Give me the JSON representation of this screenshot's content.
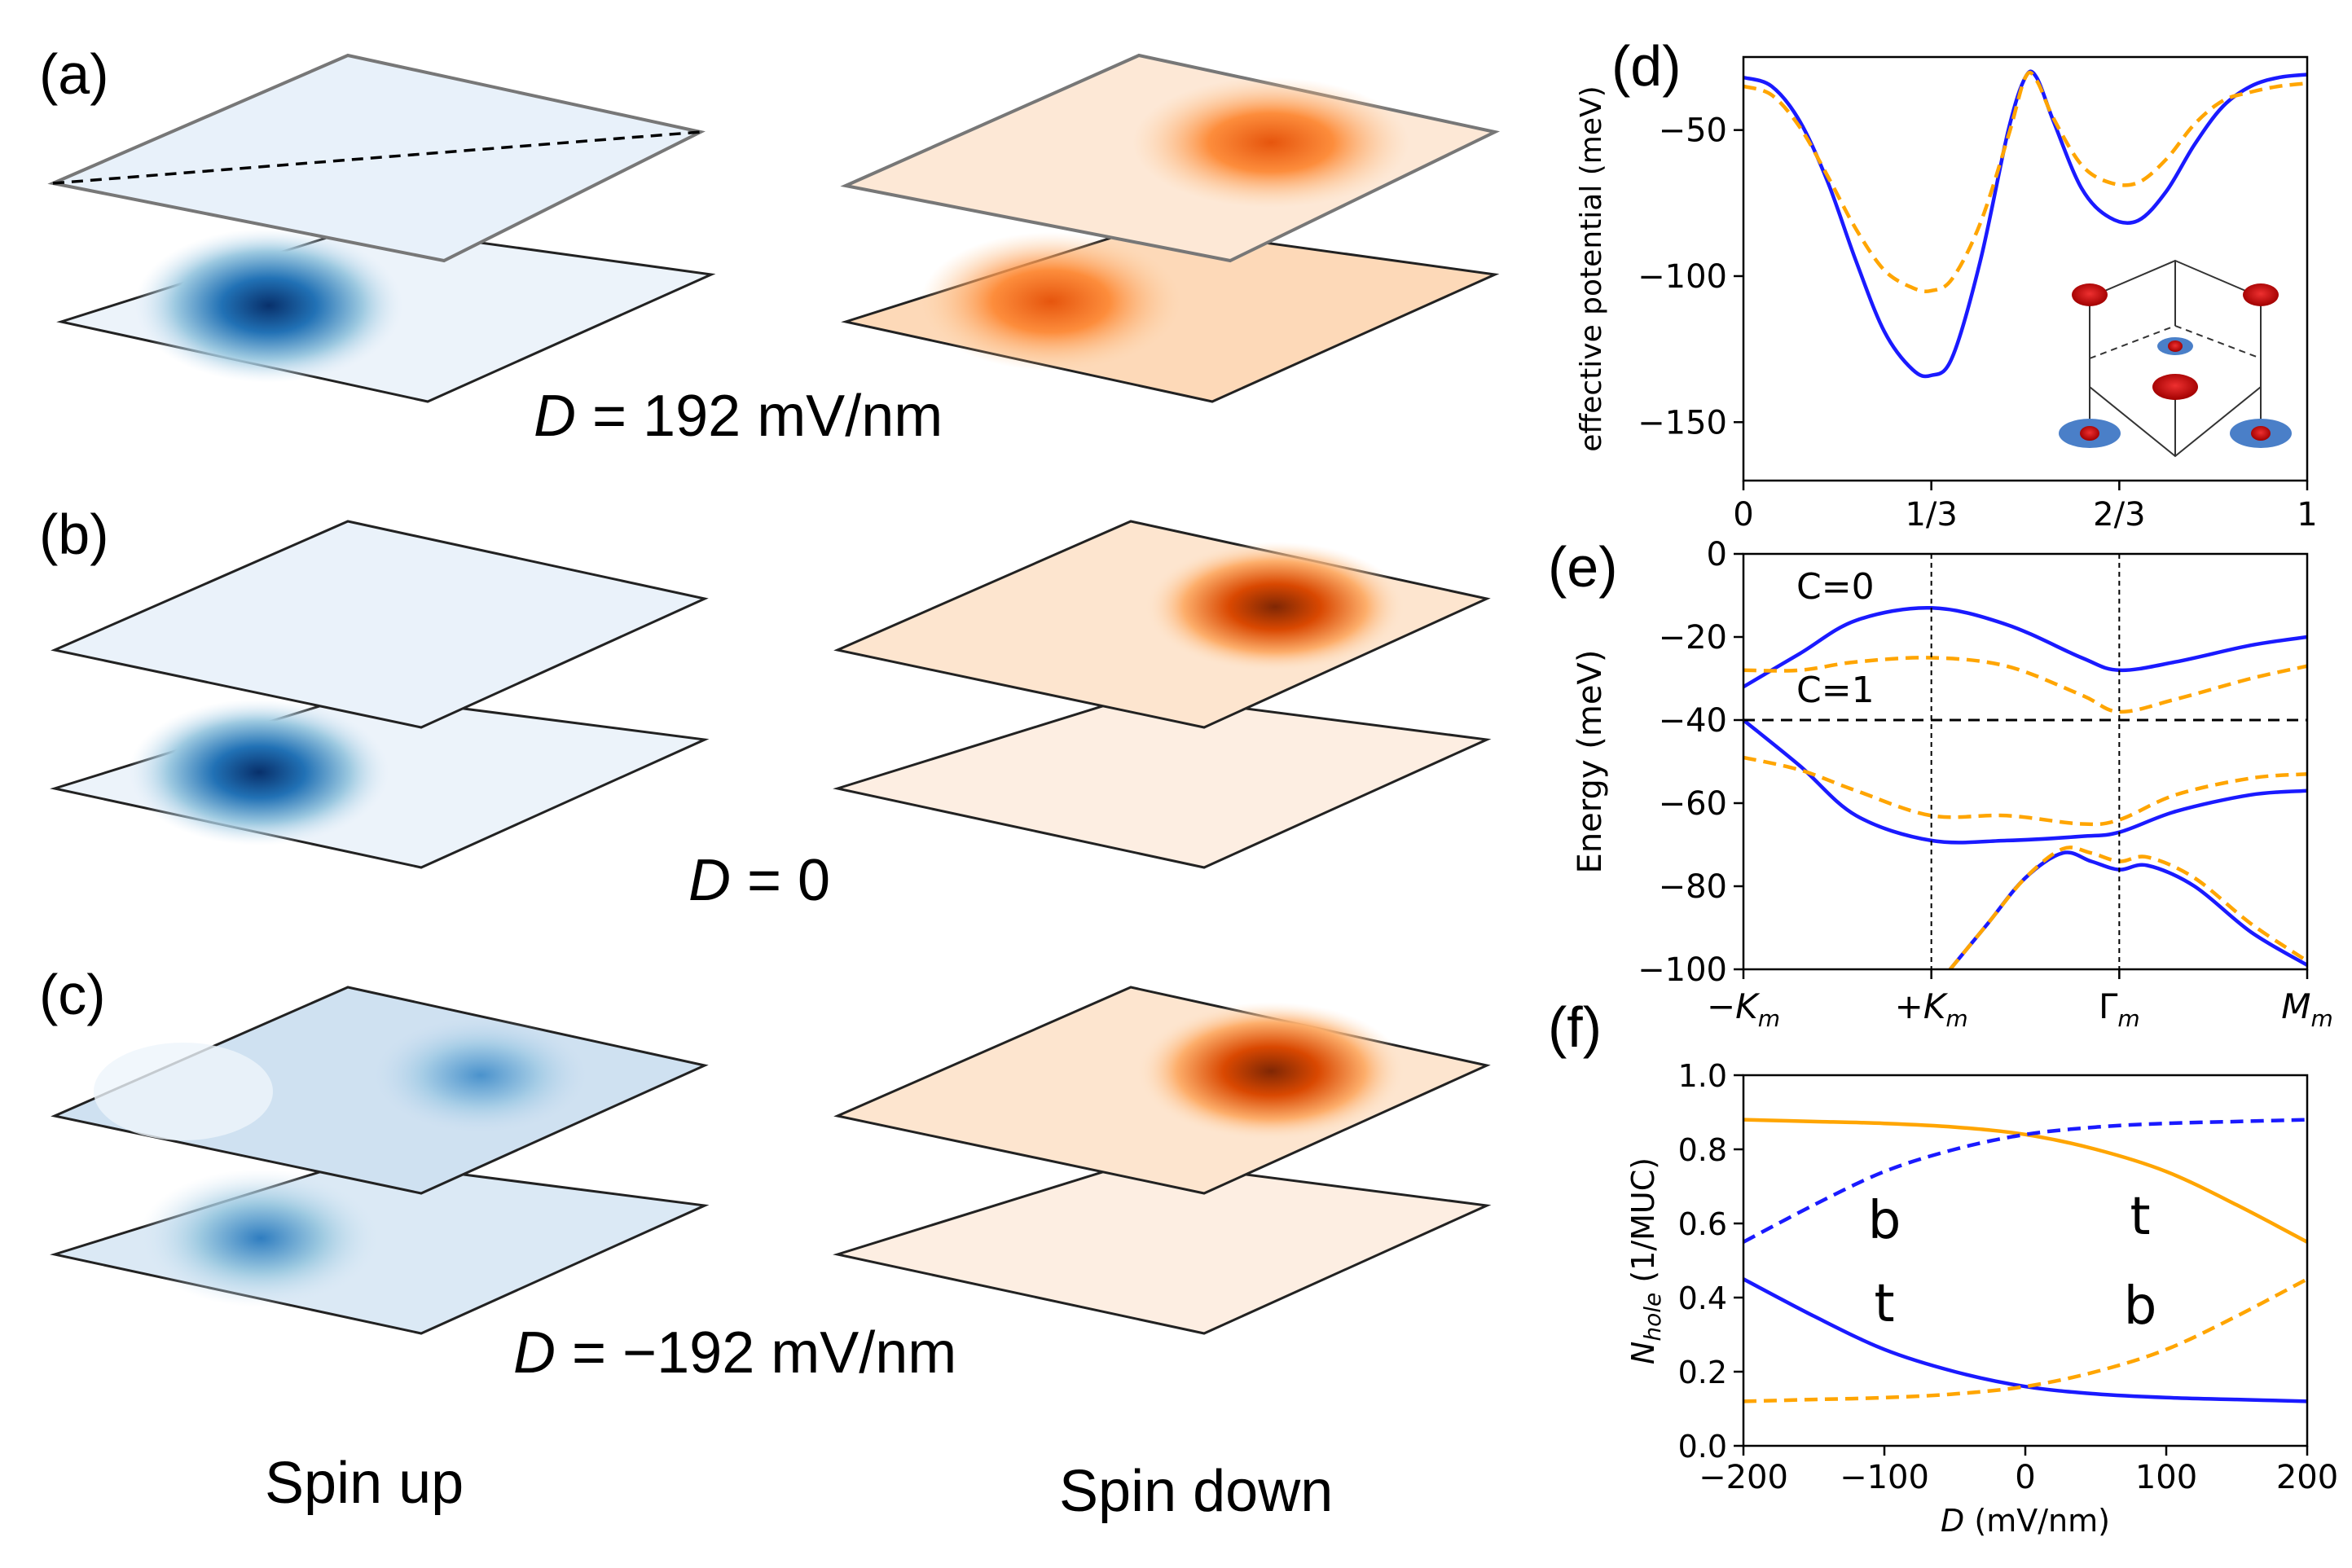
{
  "panels": {
    "a": {
      "label": "(a)",
      "caption_var": "D",
      "caption_rest": " = 192 mV/nm"
    },
    "b": {
      "label": "(b)",
      "caption_var": "D",
      "caption_rest": " = 0"
    },
    "c": {
      "label": "(c)",
      "caption_var": "D",
      "caption_rest": " = −192 mV/nm"
    },
    "d": {
      "label": "(d)"
    },
    "e": {
      "label": "(e)"
    },
    "f": {
      "label": "(f)"
    }
  },
  "spin_labels": {
    "up": "Spin up",
    "down": "Spin down"
  },
  "colors": {
    "spin_up": "#2166ac",
    "spin_down": "#d95f0e",
    "blue_line": "#1a1aff",
    "orange_line": "#ffa500"
  },
  "chart_data": [
    {
      "id": "d",
      "type": "line",
      "ylabel": "effective potential (meV)",
      "xlabel": "",
      "xlim": [
        0,
        1
      ],
      "ylim": [
        -170,
        -25
      ],
      "xticks": [
        0,
        0.3333,
        0.6667,
        1
      ],
      "xtick_labels": [
        "0",
        "1/3",
        "2/3",
        "1"
      ],
      "yticks": [
        -50,
        -100,
        -150
      ],
      "ytick_labels": [
        "−50",
        "−100",
        "−150"
      ],
      "series": [
        {
          "name": "solid",
          "style": "solid",
          "color": "#1a1aff",
          "x": [
            0,
            0.05,
            0.1,
            0.15,
            0.2,
            0.25,
            0.3,
            0.333,
            0.37,
            0.42,
            0.47,
            0.5,
            0.52,
            0.55,
            0.6,
            0.65,
            0.7,
            0.75,
            0.8,
            0.85,
            0.9,
            0.95,
            1
          ],
          "y": [
            -32,
            -35,
            -47,
            -68,
            -95,
            -119,
            -132,
            -134,
            -128,
            -95,
            -50,
            -32,
            -32,
            -47,
            -70,
            -80,
            -81,
            -71,
            -55,
            -42,
            -35,
            -32,
            -31
          ]
        },
        {
          "name": "dashed",
          "style": "dashed",
          "color": "#ffa500",
          "x": [
            0,
            0.05,
            0.1,
            0.15,
            0.2,
            0.25,
            0.3,
            0.333,
            0.37,
            0.42,
            0.47,
            0.5,
            0.52,
            0.55,
            0.6,
            0.65,
            0.7,
            0.75,
            0.8,
            0.85,
            0.9,
            0.95,
            1
          ],
          "y": [
            -35,
            -38,
            -49,
            -66,
            -84,
            -98,
            -104,
            -105,
            -101,
            -82,
            -52,
            -32,
            -33,
            -46,
            -62,
            -68,
            -68,
            -60,
            -48,
            -40,
            -37,
            -35,
            -34
          ]
        }
      ]
    },
    {
      "id": "e",
      "type": "line",
      "ylabel": "Energy (meV)",
      "xlim": [
        0,
        3
      ],
      "ylim": [
        -100,
        0
      ],
      "xtick_labels": [
        "−Km",
        "+Km",
        "Γm",
        "Mm"
      ],
      "ytick_labels": [
        "0",
        "−20",
        "−40",
        "−60",
        "−80",
        "−100"
      ],
      "yticks": [
        0,
        -20,
        -40,
        -60,
        -80,
        -100
      ],
      "annotations": [
        "C=0",
        "C=1"
      ],
      "fermi_level": -40,
      "series": [
        {
          "name": "blue band 1",
          "style": "solid",
          "color": "#1a1aff",
          "x": [
            0,
            0.3,
            0.6,
            1.0,
            1.4,
            1.8,
            2.0,
            2.3,
            2.7,
            3.0
          ],
          "y": [
            -32,
            -24,
            -16,
            -13,
            -17,
            -25,
            -28,
            -26,
            -22,
            -20
          ]
        },
        {
          "name": "blue band 2",
          "style": "solid",
          "color": "#1a1aff",
          "x": [
            0,
            0.3,
            0.6,
            1.0,
            1.4,
            1.8,
            2.0,
            2.3,
            2.7,
            3.0
          ],
          "y": [
            -40,
            -51,
            -63,
            -69,
            -69,
            -68,
            -67,
            -62,
            -58,
            -57
          ]
        },
        {
          "name": "blue band 3",
          "style": "solid",
          "color": "#1a1aff",
          "x": [
            1.1,
            1.3,
            1.5,
            1.7,
            1.85,
            2.0,
            2.15,
            2.4,
            2.7,
            3.0
          ],
          "y": [
            -100,
            -89,
            -78,
            -72,
            -74,
            -76,
            -75,
            -80,
            -91,
            -99
          ]
        },
        {
          "name": "orange band 1",
          "style": "dashed",
          "color": "#ffa500",
          "x": [
            0,
            0.3,
            0.6,
            1.0,
            1.4,
            1.8,
            2.0,
            2.3,
            2.7,
            3.0
          ],
          "y": [
            -28,
            -28,
            -26,
            -25,
            -27,
            -34,
            -38,
            -35,
            -30,
            -27
          ]
        },
        {
          "name": "orange band 2",
          "style": "dashed",
          "color": "#ffa500",
          "x": [
            0,
            0.3,
            0.6,
            1.0,
            1.4,
            1.8,
            2.0,
            2.3,
            2.7,
            3.0
          ],
          "y": [
            -49,
            -52,
            -57,
            -63,
            -63,
            -65,
            -64,
            -58,
            -54,
            -53
          ]
        },
        {
          "name": "orange band 3",
          "style": "dashed",
          "color": "#ffa500",
          "x": [
            1.1,
            1.3,
            1.5,
            1.7,
            1.85,
            2.0,
            2.15,
            2.4,
            2.7,
            3.0
          ],
          "y": [
            -100,
            -89,
            -78,
            -71,
            -72,
            -74,
            -73,
            -78,
            -89,
            -98
          ]
        }
      ]
    },
    {
      "id": "f",
      "type": "line",
      "ylabel": "Nhole (1/MUC)",
      "xlabel": "D (mV/nm)",
      "xlim": [
        -200,
        200
      ],
      "ylim": [
        0,
        1
      ],
      "xticks": [
        -200,
        -100,
        0,
        100,
        200
      ],
      "xtick_labels": [
        "−200",
        "−100",
        "0",
        "100",
        "200"
      ],
      "yticks": [
        0,
        0.2,
        0.4,
        0.6,
        0.8,
        1.0
      ],
      "ytick_labels": [
        "0.0",
        "0.2",
        "0.4",
        "0.6",
        "0.8",
        "1.0"
      ],
      "annotations": [
        "b",
        "t",
        "t",
        "b"
      ],
      "series": [
        {
          "name": "orange solid",
          "style": "solid",
          "color": "#ffa500",
          "x": [
            -200,
            -150,
            -100,
            -50,
            0,
            50,
            100,
            150,
            200
          ],
          "y": [
            0.88,
            0.875,
            0.87,
            0.86,
            0.84,
            0.8,
            0.74,
            0.65,
            0.55
          ]
        },
        {
          "name": "blue dashed",
          "style": "dashed",
          "color": "#1a1aff",
          "x": [
            -200,
            -150,
            -100,
            -50,
            0,
            50,
            100,
            150,
            200
          ],
          "y": [
            0.55,
            0.65,
            0.74,
            0.8,
            0.84,
            0.86,
            0.87,
            0.875,
            0.88
          ]
        },
        {
          "name": "blue solid",
          "style": "solid",
          "color": "#1a1aff",
          "x": [
            -200,
            -150,
            -100,
            -50,
            0,
            50,
            100,
            150,
            200
          ],
          "y": [
            0.45,
            0.35,
            0.26,
            0.2,
            0.16,
            0.14,
            0.13,
            0.125,
            0.12
          ]
        },
        {
          "name": "orange dashed",
          "style": "dashed",
          "color": "#ffa500",
          "x": [
            -200,
            -150,
            -100,
            -50,
            0,
            50,
            100,
            150,
            200
          ],
          "y": [
            0.12,
            0.125,
            0.13,
            0.14,
            0.16,
            0.2,
            0.26,
            0.35,
            0.45
          ]
        }
      ]
    }
  ]
}
